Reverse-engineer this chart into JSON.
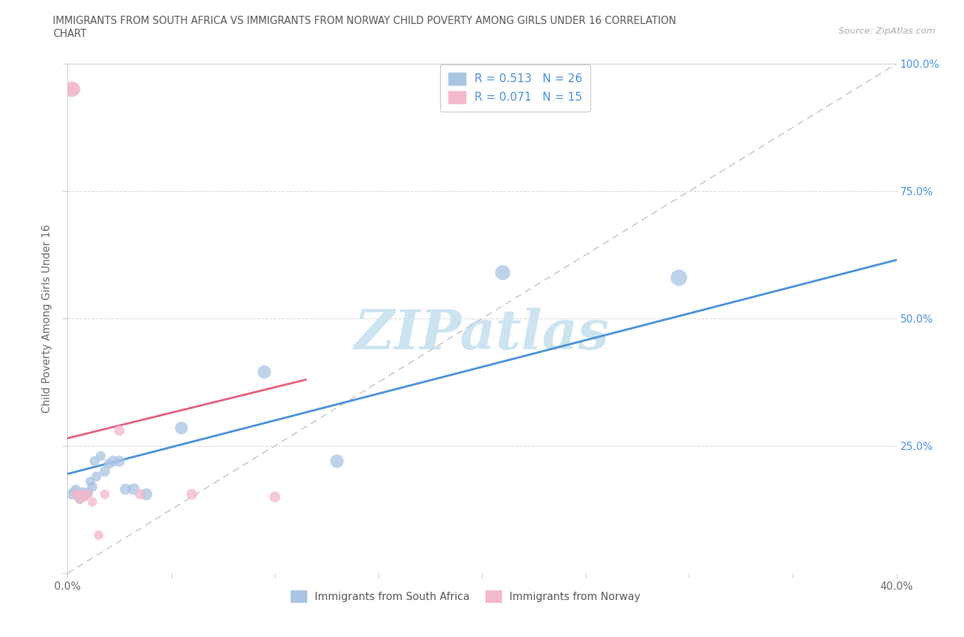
{
  "title_line1": "IMMIGRANTS FROM SOUTH AFRICA VS IMMIGRANTS FROM NORWAY CHILD POVERTY AMONG GIRLS UNDER 16 CORRELATION",
  "title_line2": "CHART",
  "source_text": "Source: ZipAtlas.com",
  "ylabel": "Child Poverty Among Girls Under 16",
  "xlim": [
    0,
    0.4
  ],
  "ylim": [
    0,
    1.0
  ],
  "south_africa_color": "#aac4e4",
  "norway_color": "#f2b8cb",
  "trendline_sa_color": "#4a90d9",
  "trendline_no_color": "#e06080",
  "diag_color": "#c8c8c8",
  "diag_dash": [
    6,
    4
  ],
  "r_sa": 0.513,
  "n_sa": 26,
  "r_no": 0.071,
  "n_no": 15,
  "watermark_text": "ZIPatlas",
  "watermark_color": "#cce4f0",
  "south_africa_x": [
    0.002,
    0.003,
    0.004,
    0.005,
    0.006,
    0.007,
    0.008,
    0.009,
    0.01,
    0.011,
    0.012,
    0.013,
    0.014,
    0.016,
    0.018,
    0.02,
    0.022,
    0.025,
    0.028,
    0.032,
    0.038,
    0.055,
    0.095,
    0.13,
    0.21,
    0.295
  ],
  "south_africa_y": [
    0.155,
    0.16,
    0.165,
    0.15,
    0.145,
    0.16,
    0.15,
    0.155,
    0.16,
    0.18,
    0.17,
    0.22,
    0.19,
    0.23,
    0.2,
    0.215,
    0.22,
    0.22,
    0.165,
    0.165,
    0.155,
    0.285,
    0.395,
    0.22,
    0.59,
    0.58
  ],
  "south_africa_sizes": [
    120,
    100,
    100,
    90,
    90,
    90,
    90,
    100,
    100,
    100,
    110,
    110,
    110,
    110,
    120,
    120,
    130,
    140,
    140,
    150,
    160,
    180,
    200,
    200,
    250,
    300
  ],
  "norway_x": [
    0.002,
    0.003,
    0.004,
    0.005,
    0.006,
    0.007,
    0.008,
    0.01,
    0.012,
    0.015,
    0.018,
    0.025,
    0.035,
    0.06,
    0.1
  ],
  "norway_y": [
    0.95,
    0.95,
    0.155,
    0.155,
    0.145,
    0.155,
    0.15,
    0.155,
    0.14,
    0.075,
    0.155,
    0.28,
    0.155,
    0.155,
    0.15
  ],
  "norway_sizes": [
    280,
    200,
    100,
    100,
    100,
    100,
    100,
    100,
    100,
    100,
    100,
    120,
    120,
    130,
    130
  ],
  "background_color": "#ffffff",
  "legend_sa_label": "Immigrants from South Africa",
  "legend_no_label": "Immigrants from Norway",
  "sa_trendline_x0": 0.0,
  "sa_trendline_y0": 0.195,
  "sa_trendline_x1": 0.4,
  "sa_trendline_y1": 0.615,
  "no_trendline_x0": 0.0,
  "no_trendline_y0": 0.265,
  "no_trendline_x1": 0.115,
  "no_trendline_y1": 0.38
}
